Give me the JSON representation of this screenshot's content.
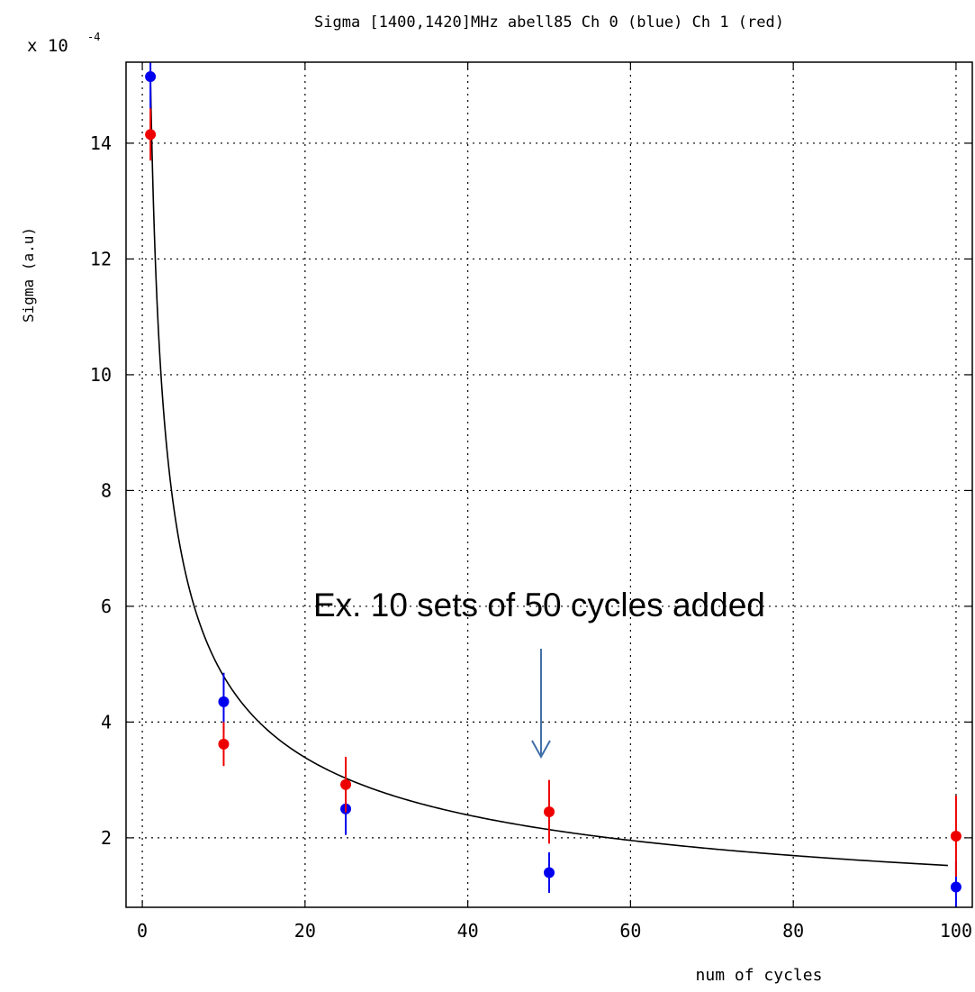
{
  "chart_data": {
    "type": "scatter",
    "title": "Sigma [1400,1420]MHz abell85 Ch 0 (blue) Ch 1 (red)",
    "xlabel": "num of cycles",
    "ylabel": "Sigma (a.u)",
    "y_multiplier": "x 10",
    "y_multiplier_exp": "-4",
    "xlim": [
      -2,
      102
    ],
    "ylim": [
      0.8,
      15.4
    ],
    "xticks": [
      0,
      20,
      40,
      60,
      80,
      100
    ],
    "yticks": [
      2,
      4,
      6,
      8,
      10,
      12,
      14
    ],
    "grid": true,
    "series": [
      {
        "color": "#0000ee",
        "points": [
          {
            "x": 1,
            "y": 15.15,
            "err": 0.55
          },
          {
            "x": 10,
            "y": 4.35,
            "err": 0.5
          },
          {
            "x": 25,
            "y": 2.5,
            "err": 0.45
          },
          {
            "x": 50,
            "y": 1.4,
            "err": 0.35
          },
          {
            "x": 100,
            "y": 1.15,
            "err": 0.45
          }
        ]
      },
      {
        "color": "#ee0000",
        "points": [
          {
            "x": 1,
            "y": 14.15,
            "err": 0.45
          },
          {
            "x": 10,
            "y": 3.62,
            "err": 0.38
          },
          {
            "x": 25,
            "y": 2.92,
            "err": 0.48
          },
          {
            "x": 50,
            "y": 2.45,
            "err": 0.55
          },
          {
            "x": 100,
            "y": 2.03,
            "err": 0.7
          }
        ]
      }
    ],
    "fit": {
      "color": "#000000",
      "x_start": 1,
      "x_end": 99,
      "amplitude": 15.15,
      "exponent": 0.5
    },
    "annotation": {
      "text": "Ex. 10 sets of 50 cycles added",
      "arrow_x": 49,
      "arrow_color": "#3f6ea8"
    }
  }
}
